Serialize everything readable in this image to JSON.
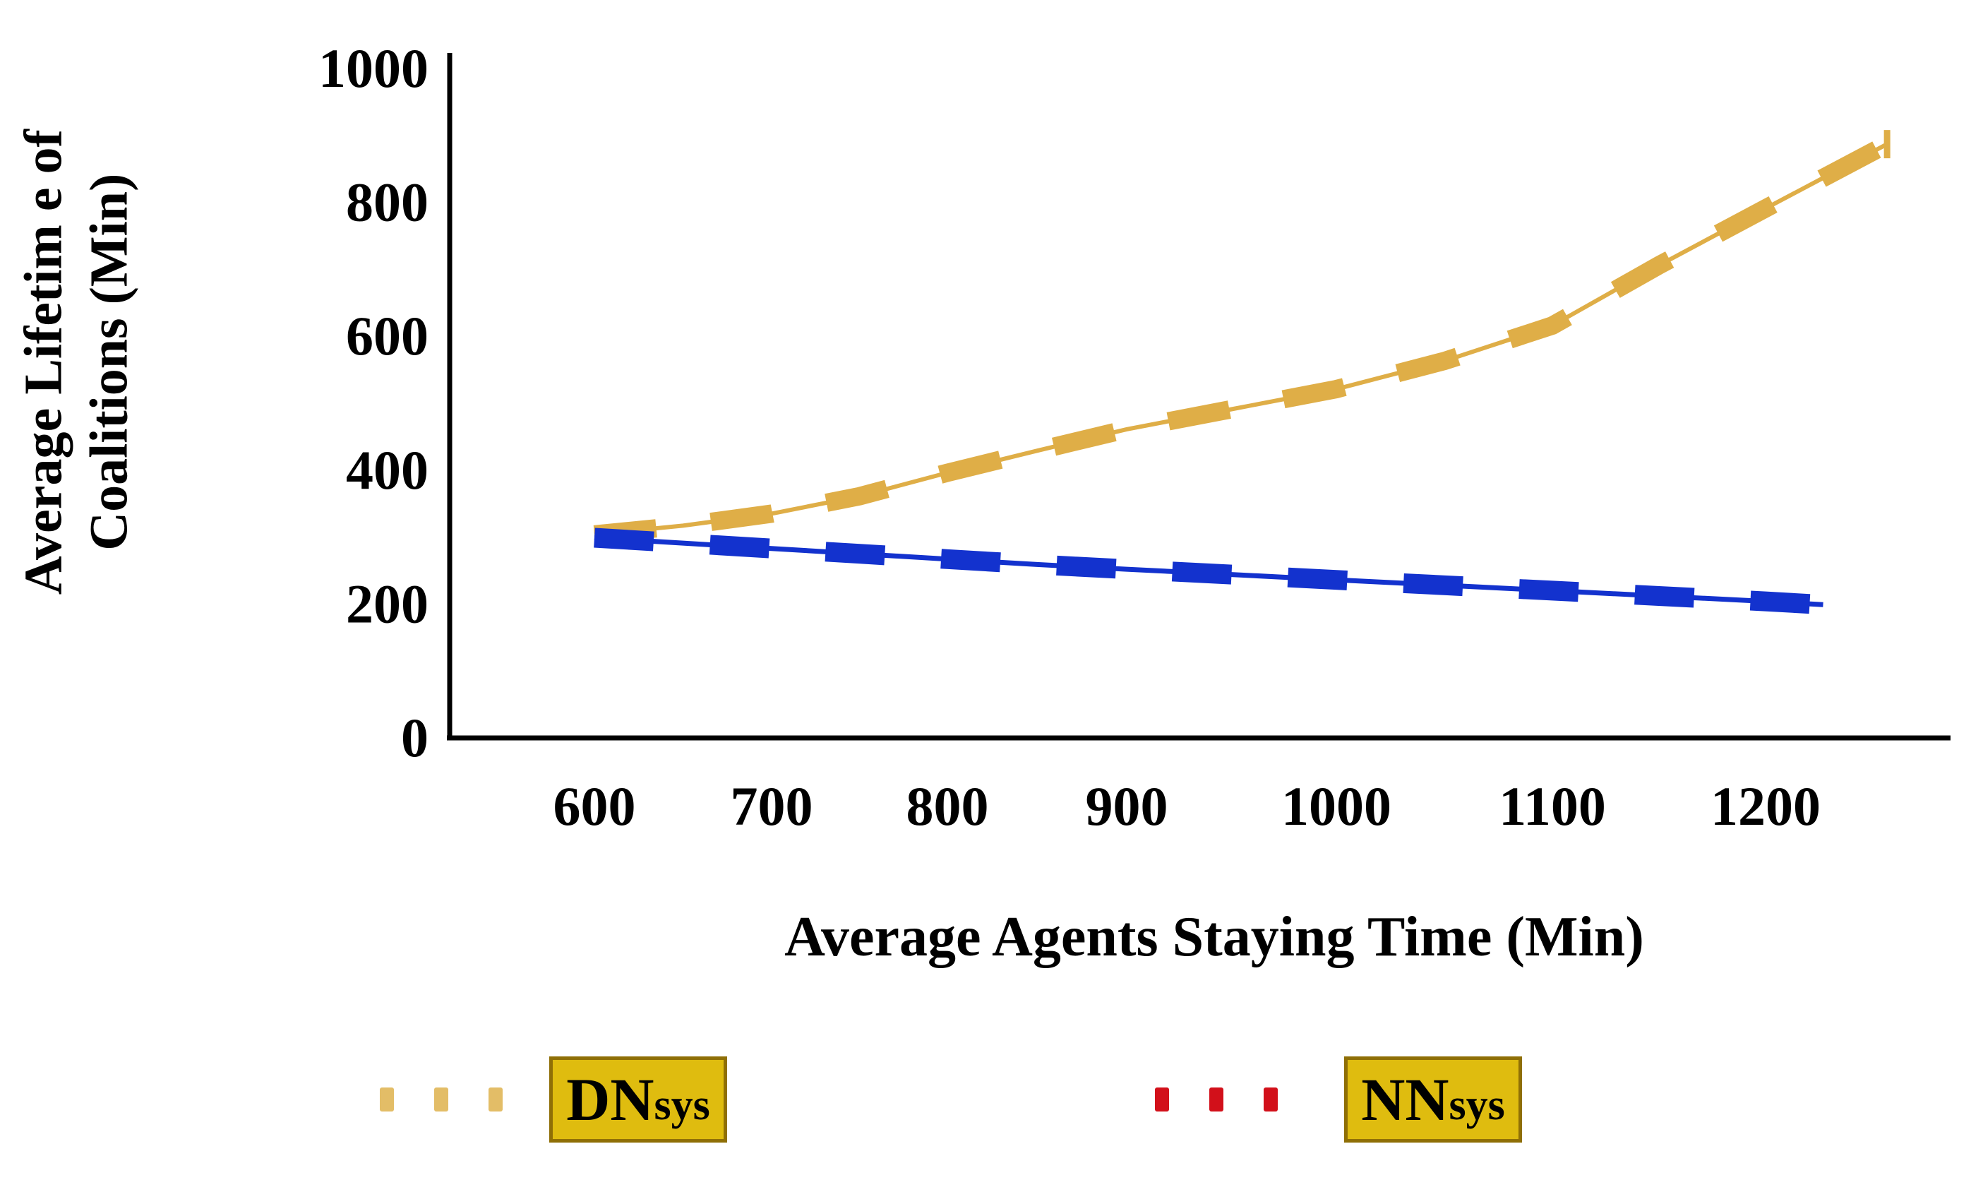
{
  "chart_data": {
    "type": "line",
    "title": "",
    "xlabel": "Average Agents Staying Time (Min)",
    "ylabel_line1": "Average Lifetim e of",
    "ylabel_line2": "Coalitions (Min)",
    "x_ticks": [
      600,
      700,
      800,
      900,
      1000,
      1100,
      1200
    ],
    "y_ticks": [
      0,
      200,
      400,
      600,
      800,
      1000
    ],
    "xlim": [
      520,
      1300
    ],
    "ylim": [
      0,
      1000
    ],
    "grid": false,
    "legend_position": "bottom",
    "axis_color": "#000000",
    "series": [
      {
        "name": "DNsys",
        "color": "#DFAE47",
        "line_style": "thick-dashes-over-solid",
        "end_cap_tick": true,
        "x": [
          600,
          650,
          700,
          750,
          800,
          850,
          900,
          950,
          1000,
          1050,
          1100,
          1150,
          1200,
          1257
        ],
        "y": [
          303,
          316,
          334,
          360,
          395,
          428,
          460,
          490,
          520,
          562,
          615,
          705,
          790,
          886
        ]
      },
      {
        "name": "NNsys",
        "color": "#1332CE",
        "line_style": "thick-dashes-over-solid",
        "end_cap_tick": false,
        "x": [
          600,
          650,
          700,
          750,
          800,
          850,
          900,
          950,
          1000,
          1050,
          1100,
          1150,
          1200,
          1227
        ],
        "y": [
          298,
          290,
          282,
          274,
          266,
          258,
          251,
          243,
          235,
          227,
          219,
          211,
          203,
          198
        ]
      }
    ],
    "legend": [
      {
        "label_main": "DN",
        "label_sub": "sys",
        "marker_color": "#E3BD67",
        "box_fill": "#DFBC0F",
        "box_border": "#8F6F06"
      },
      {
        "label_main": "NN",
        "label_sub": "sys",
        "marker_color": "#D2101A",
        "box_fill": "#DFBC0F",
        "box_border": "#8F6F06"
      }
    ]
  }
}
